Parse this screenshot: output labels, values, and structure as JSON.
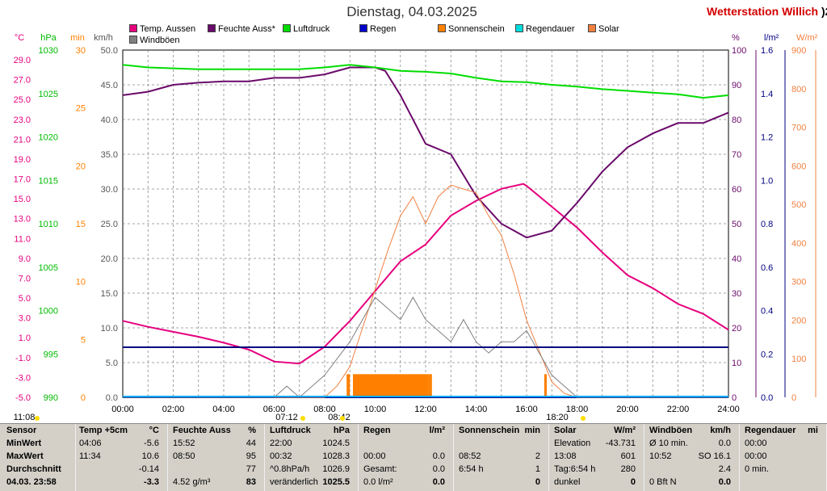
{
  "header": {
    "title": "Dienstag, 04.03.2025",
    "station": "Wetterstation Willich",
    "station_clip": ")2"
  },
  "legend": [
    {
      "label": "Temp. Aussen",
      "color": "#e6007e"
    },
    {
      "label": "Feuchte Auss*",
      "color": "#6a0a6a"
    },
    {
      "label": "Luftdruck",
      "color": "#00dd00"
    },
    {
      "label": "Regen",
      "color": "#0000cc"
    },
    {
      "label": "Sonnenschein",
      "color": "#ff8000"
    },
    {
      "label": "Regendauer",
      "color": "#00dddd"
    },
    {
      "label": "Solar",
      "color": "#f08040"
    },
    {
      "label": "Windböen",
      "color": "#808080"
    }
  ],
  "axes": {
    "temp": {
      "unit": "°C",
      "color": "#e6007e",
      "ticks": [
        "29.0",
        "27.0",
        "25.0",
        "23.0",
        "21.0",
        "19.0",
        "17.0",
        "15.0",
        "13.0",
        "11.0",
        "9.0",
        "7.0",
        "5.0",
        "3.0",
        "1.0",
        "-1.0",
        "-3.0",
        "-5.0"
      ]
    },
    "hpa": {
      "unit": "hPa",
      "color": "#00bb00",
      "ticks": [
        "1030",
        "1025",
        "1020",
        "1015",
        "1010",
        "1005",
        "1000",
        "995",
        "990"
      ]
    },
    "min": {
      "unit": "min",
      "color": "#ff8000",
      "ticks": [
        "30",
        "25",
        "20",
        "15",
        "10",
        "5",
        "0"
      ]
    },
    "kmh": {
      "unit": "km/h",
      "color": "#555555",
      "ticks": [
        "50.0",
        "45.0",
        "40.0",
        "35.0",
        "30.0",
        "25.0",
        "20.0",
        "15.0",
        "10.0",
        "5.0",
        "0.0"
      ]
    },
    "pct": {
      "unit": "%",
      "color": "#6a0a6a",
      "ticks": [
        "100",
        "90",
        "80",
        "70",
        "60",
        "50",
        "40",
        "30",
        "20",
        "10",
        "0"
      ]
    },
    "lm2": {
      "unit": "l/m²",
      "color": "#000080",
      "ticks": [
        "1.6",
        "1.4",
        "1.2",
        "1.0",
        "0.8",
        "0.6",
        "0.4",
        "0.2",
        "0.0"
      ]
    },
    "wm2": {
      "unit": "W/m²",
      "color": "#f08040",
      "ticks": [
        "900",
        "800",
        "700",
        "600",
        "500",
        "400",
        "300",
        "200",
        "100",
        "0"
      ]
    },
    "x": {
      "ticks": [
        "00:00",
        "02:00",
        "04:00",
        "06:00",
        "08:00",
        "10:00",
        "12:00",
        "14:00",
        "16:00",
        "18:00",
        "20:00",
        "22:00",
        "24:00"
      ]
    }
  },
  "markers": {
    "moonrise": "11:08",
    "sunrise": "07:12",
    "sunnoon": "08:42",
    "sunset": "18:20"
  },
  "chart_data": {
    "type": "line",
    "xlim": [
      0,
      24
    ],
    "series": [
      {
        "name": "Temp. Aussen",
        "unit": "°C",
        "color": "#e6007e",
        "x": [
          0,
          1,
          2,
          3,
          4,
          5,
          6,
          7,
          8,
          9,
          10,
          11,
          12,
          13,
          14,
          15,
          15.87,
          16,
          17,
          18,
          19,
          20,
          21,
          22,
          23,
          24
        ],
        "y": [
          2.7,
          2.1,
          1.6,
          1.1,
          0.5,
          -0.2,
          -1.4,
          -1.6,
          0.1,
          2.7,
          5.7,
          8.7,
          10.4,
          13.3,
          14.8,
          16.0,
          16.5,
          16.3,
          14.2,
          12.1,
          9.6,
          7.3,
          6.0,
          4.4,
          3.4,
          1.8
        ]
      },
      {
        "name": "Feuchte Auss*",
        "unit": "%",
        "color": "#6a0a6a",
        "x": [
          0,
          1,
          2,
          3,
          4,
          5,
          6,
          7,
          8,
          9,
          10,
          10.4,
          11,
          12,
          13,
          14,
          15,
          16,
          17,
          18,
          19,
          20,
          21,
          22,
          23,
          24
        ],
        "y": [
          87,
          88,
          90,
          90.6,
          91,
          91,
          92,
          92,
          93,
          95,
          95,
          94,
          87,
          73,
          70,
          58,
          50,
          46,
          48,
          56,
          65,
          72,
          76,
          79,
          79,
          82
        ]
      },
      {
        "name": "Luftdruck",
        "unit": "hPa",
        "color": "#00dd00",
        "x": [
          0,
          1,
          2,
          3,
          4,
          5,
          6,
          7,
          8,
          9,
          10,
          11,
          12,
          13,
          14,
          15,
          16,
          17,
          18,
          19,
          20,
          21,
          22,
          23,
          24
        ],
        "y": [
          1028.3,
          1028.0,
          1027.9,
          1027.8,
          1027.8,
          1027.8,
          1027.8,
          1027.8,
          1028.0,
          1028.3,
          1028.0,
          1027.6,
          1027.5,
          1027.3,
          1026.8,
          1026.4,
          1026.3,
          1026.0,
          1025.8,
          1025.5,
          1025.3,
          1025.1,
          1024.9,
          1024.5,
          1024.8
        ]
      },
      {
        "name": "Regen",
        "unit": "l/m²",
        "color": "#000080",
        "x": [
          0,
          24
        ],
        "y": [
          0.0,
          0.0
        ]
      },
      {
        "name": "Solar",
        "unit": "W/m²",
        "color": "#f08040",
        "x": [
          0,
          8,
          8.5,
          9,
          9.5,
          10,
          10.5,
          11,
          11.5,
          12,
          12.5,
          13,
          13.5,
          14,
          14.5,
          15,
          15.5,
          16,
          16.5,
          17,
          17.5,
          18,
          24
        ],
        "y": [
          0,
          0,
          30,
          80,
          180,
          280,
          380,
          470,
          520,
          450,
          520,
          550,
          540,
          530,
          470,
          420,
          320,
          200,
          120,
          40,
          10,
          0,
          0
        ]
      },
      {
        "name": "Windböen",
        "unit": "km/h",
        "color": "#808080",
        "x": [
          0,
          3,
          5,
          6,
          6.5,
          7,
          8,
          9,
          9.5,
          10,
          10.5,
          11,
          11.5,
          12,
          12.5,
          13,
          13.5,
          14,
          14.5,
          15,
          15.5,
          16,
          16.5,
          17,
          17.5,
          18,
          24
        ],
        "y": [
          0,
          0,
          0,
          0,
          1.6,
          0,
          3.2,
          8.0,
          11.2,
          14.4,
          12.8,
          11.2,
          14.4,
          11.2,
          9.6,
          8.0,
          11.2,
          8.0,
          6.4,
          8.0,
          8.0,
          9.6,
          6.4,
          3.2,
          1.6,
          0,
          0
        ]
      },
      {
        "name": "Sonnenschein",
        "unit": "min",
        "color": "#ff8000",
        "x": [
          8.87,
          9.0,
          9.12,
          12.1,
          12.25,
          16.7,
          16.8
        ],
        "y": [
          2,
          0,
          2,
          2,
          0,
          2,
          0
        ]
      }
    ]
  },
  "table": {
    "columns": [
      {
        "rows": [
          [
            "Sensor"
          ],
          [
            "MinWert"
          ],
          [
            "MaxWert"
          ],
          [
            "Durchschnitt"
          ],
          [
            "04.03. 23:58"
          ]
        ]
      },
      {
        "rows": [
          [
            "Temp +5cm",
            "°C"
          ],
          [
            "04:06",
            "-5.6"
          ],
          [
            "11:34",
            "10.6"
          ],
          [
            "",
            "-0.14"
          ],
          [
            "",
            "-3.3"
          ]
        ]
      },
      {
        "rows": [
          [
            "Feuchte Auss",
            "%"
          ],
          [
            "15:52",
            "44"
          ],
          [
            "08:50",
            "95"
          ],
          [
            "",
            "77"
          ],
          [
            "4.52 g/m³",
            "83"
          ]
        ]
      },
      {
        "rows": [
          [
            "Luftdruck",
            "hPa"
          ],
          [
            "22:00",
            "1024.5"
          ],
          [
            "00:32",
            "1028.3"
          ],
          [
            "^0.8hPa/h",
            "1026.9"
          ],
          [
            "veränderlich",
            "1025.5"
          ]
        ]
      },
      {
        "rows": [
          [
            "Regen",
            "l/m²"
          ],
          [
            "",
            ""
          ],
          [
            "00:00",
            "0.0"
          ],
          [
            "Gesamt:",
            "0.0"
          ],
          [
            "0.0 l/m²",
            "0.0"
          ]
        ]
      },
      {
        "rows": [
          [
            "Sonnenschein",
            "min"
          ],
          [
            "",
            ""
          ],
          [
            "08:52",
            "2"
          ],
          [
            "6:54 h",
            "1"
          ],
          [
            "",
            "0"
          ]
        ]
      },
      {
        "rows": [
          [
            "Solar",
            "W/m²"
          ],
          [
            "Elevation",
            "-43.731"
          ],
          [
            "13:08",
            "601"
          ],
          [
            "Tag:6:54 h",
            "280"
          ],
          [
            "dunkel",
            "0"
          ]
        ]
      },
      {
        "rows": [
          [
            "Windböen",
            "km/h"
          ],
          [
            "Ø 10 min.",
            "0.0"
          ],
          [
            "10:52",
            "SO 16.1"
          ],
          [
            "",
            "2.4"
          ],
          [
            "0 Bft N",
            "0.0"
          ]
        ]
      },
      {
        "rows": [
          [
            "Regendauer",
            "mi"
          ],
          [
            "00:00",
            ""
          ],
          [
            "00:00",
            ""
          ],
          [
            "0 min.",
            ""
          ],
          [
            "",
            ""
          ]
        ]
      }
    ]
  }
}
